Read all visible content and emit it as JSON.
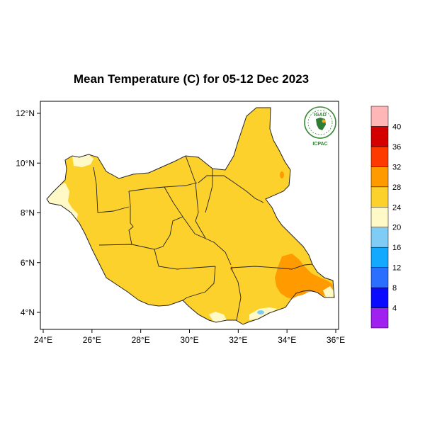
{
  "title": "Mean Temperature (C) for 05-12 Dec 2023",
  "logo": {
    "top_text": "IGAD",
    "bottom_text": "ICPAC",
    "colors": [
      "#2e7d32",
      "#f5a623"
    ]
  },
  "x_axis": {
    "ticks": [
      24,
      26,
      28,
      30,
      32,
      34,
      36
    ],
    "labels": [
      "24°E",
      "26°E",
      "28°E",
      "30°E",
      "32°E",
      "34°E",
      "36°E"
    ]
  },
  "y_axis": {
    "ticks": [
      4,
      6,
      8,
      10,
      12
    ],
    "labels": [
      "4°N",
      "6°N",
      "8°N",
      "10°N",
      "12°N"
    ]
  },
  "map_extent": {
    "lon": [
      24,
      36
    ],
    "lat": [
      3.5,
      12.2
    ]
  },
  "colorbar": {
    "levels": [
      "4",
      "8",
      "12",
      "16",
      "20",
      "24",
      "28",
      "32",
      "36",
      "40"
    ],
    "colors": [
      "#a020f0",
      "#0a0aff",
      "#2b6fff",
      "#12a9ff",
      "#7fcdf5",
      "#fff9c8",
      "#fdd12c",
      "#ff9a00",
      "#ff3a00",
      "#d40000",
      "#ffb6b6"
    ]
  },
  "regions": [
    {
      "name": "warm-28-32",
      "color": "#ff9a00"
    },
    {
      "name": "cool-20-24",
      "color": "#fff9c8"
    },
    {
      "name": "cold-16-20",
      "color": "#7fcdf5"
    }
  ],
  "background_color": "#fdd12c"
}
